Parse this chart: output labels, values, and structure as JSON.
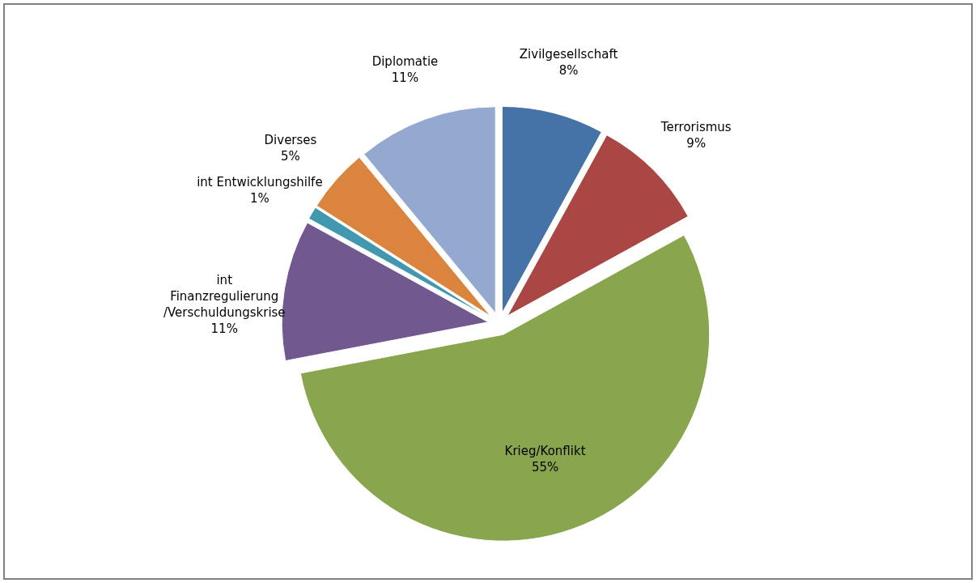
{
  "chart_data": {
    "type": "pie",
    "categories": [
      "Zivilgesellschaft",
      "Terrorismus",
      "Krieg/Konflikt",
      "int Finanzregulierung /Verschuldungskrise",
      "int Entwicklungshilfe",
      "Diverses",
      "Diplomatie"
    ],
    "values": [
      8,
      9,
      55,
      11,
      1,
      5,
      11
    ],
    "value_labels": [
      "8%",
      "9%",
      "55%",
      "11%",
      "1%",
      "5%",
      "11%"
    ],
    "colors": [
      "#4572a7",
      "#aa4643",
      "#89a54e",
      "#71588f",
      "#4198af",
      "#db843d",
      "#93a9cf"
    ]
  }
}
